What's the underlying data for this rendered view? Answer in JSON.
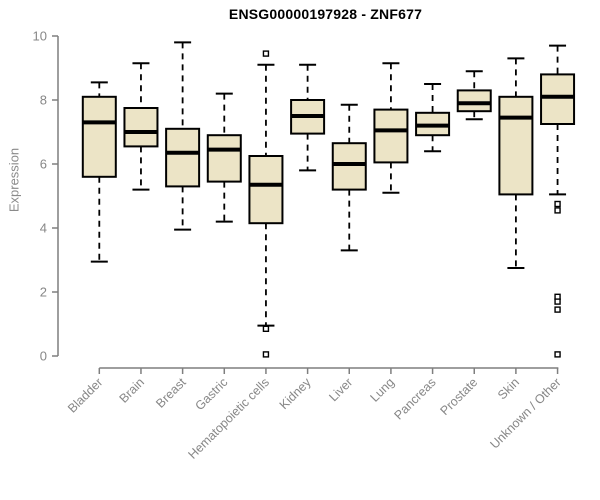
{
  "chart_data": {
    "type": "boxplot",
    "title": "ENSG00000197928 - ZNF677",
    "ylabel": "Expression",
    "xlabel": "",
    "ylim": [
      0,
      10
    ],
    "yticks": [
      0,
      2,
      4,
      6,
      8,
      10
    ],
    "grid": false,
    "legend": "none",
    "tick_label_rotation_deg": 45,
    "colors": {
      "box_fill": "#ece4c6",
      "box_stroke": "#000000",
      "median": "#000000",
      "whisker": "#000000",
      "outlier_stroke": "#000000",
      "axis_line": "#7f7f7f",
      "tick_text": "#878787",
      "title_text": "#000000",
      "background": "#ffffff"
    },
    "categories": [
      "Bladder",
      "Brain",
      "Breast",
      "Gastric",
      "Hematopoietic cells",
      "Kidney",
      "Liver",
      "Lung",
      "Pancreas",
      "Prostate",
      "Skin",
      "Unknown / Other"
    ],
    "series": [
      {
        "category": "Bladder",
        "whisker_low": 2.95,
        "q1": 5.6,
        "median": 7.3,
        "q3": 8.1,
        "whisker_high": 8.55,
        "outliers": []
      },
      {
        "category": "Brain",
        "whisker_low": 5.2,
        "q1": 6.55,
        "median": 7.0,
        "q3": 7.75,
        "whisker_high": 9.15,
        "outliers": []
      },
      {
        "category": "Breast",
        "whisker_low": 3.95,
        "q1": 5.3,
        "median": 6.35,
        "q3": 7.1,
        "whisker_high": 9.8,
        "outliers": []
      },
      {
        "category": "Gastric",
        "whisker_low": 4.2,
        "q1": 5.45,
        "median": 6.45,
        "q3": 6.9,
        "whisker_high": 8.2,
        "outliers": []
      },
      {
        "category": "Hematopoietic cells",
        "whisker_low": 0.95,
        "q1": 4.15,
        "median": 5.35,
        "q3": 6.25,
        "whisker_high": 9.1,
        "outliers": [
          9.45,
          0.85,
          0.05
        ]
      },
      {
        "category": "Kidney",
        "whisker_low": 5.8,
        "q1": 6.95,
        "median": 7.5,
        "q3": 8.0,
        "whisker_high": 9.1,
        "outliers": []
      },
      {
        "category": "Liver",
        "whisker_low": 3.3,
        "q1": 5.2,
        "median": 6.0,
        "q3": 6.65,
        "whisker_high": 7.85,
        "outliers": []
      },
      {
        "category": "Lung",
        "whisker_low": 5.1,
        "q1": 6.05,
        "median": 7.05,
        "q3": 7.7,
        "whisker_high": 9.15,
        "outliers": []
      },
      {
        "category": "Pancreas",
        "whisker_low": 6.4,
        "q1": 6.9,
        "median": 7.2,
        "q3": 7.6,
        "whisker_high": 8.5,
        "outliers": []
      },
      {
        "category": "Prostate",
        "whisker_low": 7.4,
        "q1": 7.65,
        "median": 7.9,
        "q3": 8.3,
        "whisker_high": 8.9,
        "outliers": []
      },
      {
        "category": "Skin",
        "whisker_low": 2.75,
        "q1": 5.05,
        "median": 7.45,
        "q3": 8.1,
        "whisker_high": 9.3,
        "outliers": []
      },
      {
        "category": "Unknown / Other",
        "whisker_low": 5.05,
        "q1": 7.25,
        "median": 8.1,
        "q3": 8.8,
        "whisker_high": 9.7,
        "outliers": [
          4.75,
          4.55,
          1.85,
          1.7,
          1.45,
          0.05
        ]
      }
    ]
  }
}
